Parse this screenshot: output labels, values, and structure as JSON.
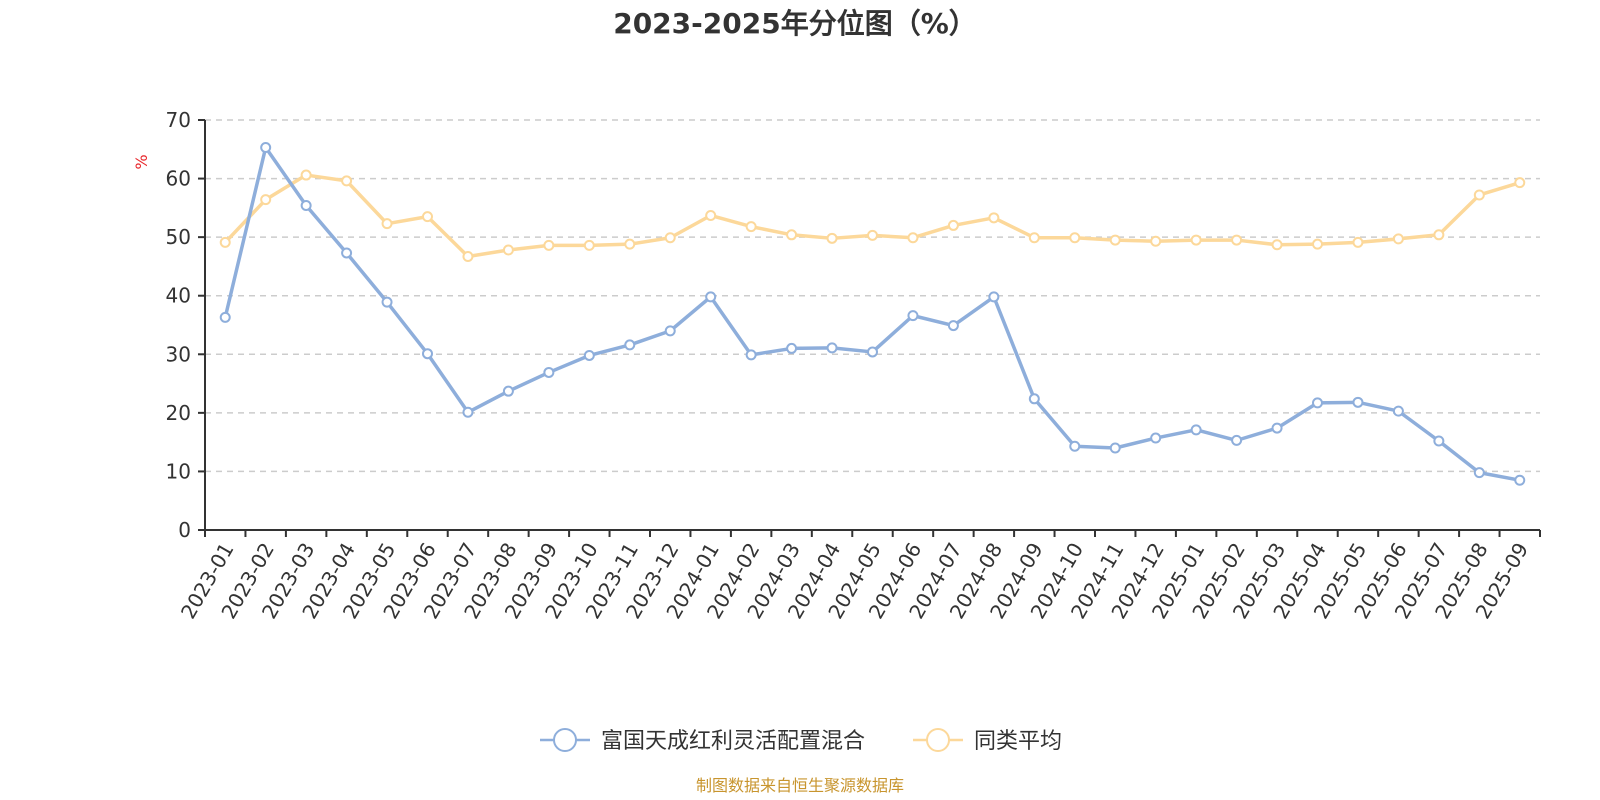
{
  "chart_data": {
    "type": "line",
    "title": "2023-2025年分位图（%）",
    "ylabel": "%",
    "ylim": [
      0,
      70
    ],
    "y_ticks": [
      0,
      10,
      20,
      30,
      40,
      50,
      60,
      70
    ],
    "grid": true,
    "legend_position": "bottom",
    "categories": [
      "2023-01",
      "2023-02",
      "2023-03",
      "2023-04",
      "2023-05",
      "2023-06",
      "2023-07",
      "2023-08",
      "2023-09",
      "2023-10",
      "2023-11",
      "2023-12",
      "2024-01",
      "2024-02",
      "2024-03",
      "2024-04",
      "2024-05",
      "2024-06",
      "2024-07",
      "2024-08",
      "2024-09",
      "2024-10",
      "2024-11",
      "2024-12",
      "2025-01",
      "2025-02",
      "2025-03",
      "2025-04",
      "2025-05",
      "2025-06",
      "2025-07",
      "2025-08",
      "2025-09"
    ],
    "series": [
      {
        "name": "富国天成红利灵活配置混合",
        "color": "#8eaedb",
        "values": [
          36.3,
          65.3,
          55.4,
          47.3,
          38.9,
          30.1,
          20.1,
          23.7,
          26.9,
          29.8,
          31.6,
          34.0,
          39.8,
          29.9,
          31.0,
          31.1,
          30.4,
          36.6,
          34.9,
          39.8,
          22.4,
          14.3,
          14.0,
          15.7,
          17.1,
          15.3,
          17.4,
          21.7,
          21.8,
          20.3,
          15.2,
          9.8,
          8.5
        ]
      },
      {
        "name": "同类平均",
        "color": "#fcd89a",
        "values": [
          49.1,
          56.4,
          60.6,
          59.6,
          52.3,
          53.5,
          46.7,
          47.8,
          48.6,
          48.6,
          48.8,
          49.9,
          53.7,
          51.8,
          50.4,
          49.8,
          50.3,
          49.9,
          52.0,
          53.3,
          49.9,
          49.9,
          49.5,
          49.3,
          49.5,
          49.5,
          48.7,
          48.8,
          49.1,
          49.7,
          50.4,
          57.2,
          59.3
        ]
      }
    ],
    "source": "制图数据来自恒生聚源数据库"
  }
}
